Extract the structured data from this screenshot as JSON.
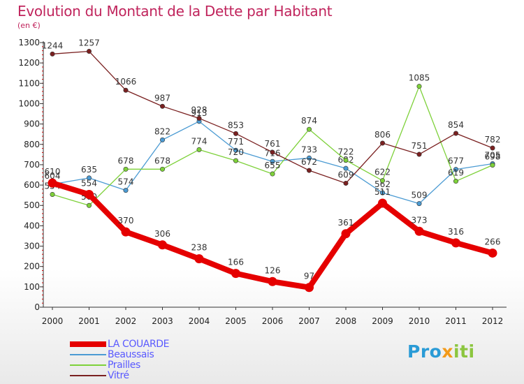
{
  "title": "Evolution du Montant de la Dette par Habitant",
  "subtitle": "(en €)",
  "logo": {
    "part1": "Pro",
    "part2": "x",
    "part3": "iti"
  },
  "colors": {
    "title": "#c0245c",
    "legend_text": "#5a5aff"
  },
  "chart_data": {
    "type": "line",
    "title": "Evolution du Montant de la Dette par Habitant",
    "subtitle": "(en €)",
    "x": [
      "2000",
      "2001",
      "2002",
      "2003",
      "2004",
      "2005",
      "2006",
      "2007",
      "2008",
      "2009",
      "2010",
      "2011",
      "2012"
    ],
    "ylim": [
      0,
      1300
    ],
    "yticks": [
      0,
      100,
      200,
      300,
      400,
      500,
      600,
      700,
      800,
      900,
      1000,
      1100,
      1200,
      1300
    ],
    "legend_position": "bottom-left",
    "grid": false,
    "series": [
      {
        "name": "LA COUARDE",
        "color": "#e50000",
        "width": 8,
        "values": [
          610,
          554,
          370,
          306,
          238,
          166,
          126,
          97,
          361,
          511,
          373,
          316,
          266
        ],
        "labels": [
          "610",
          "554",
          "370",
          "306",
          "238",
          "166",
          "126",
          "97",
          "361",
          "511",
          "373",
          "316",
          "266"
        ]
      },
      {
        "name": "Beaussais",
        "color": "#4b9bd3",
        "width": 1.3,
        "values": [
          604,
          635,
          574,
          822,
          913,
          771,
          716,
          733,
          682,
          562,
          509,
          677,
          705
        ],
        "labels": [
          "604",
          "635",
          "574",
          "822",
          "913",
          "771",
          "716",
          "733",
          "682",
          "562",
          "509",
          "677",
          "705"
        ]
      },
      {
        "name": "Prailles",
        "color": "#7ed13a",
        "width": 1.3,
        "values": [
          554,
          500,
          678,
          678,
          774,
          720,
          655,
          874,
          722,
          622,
          1085,
          619,
          698
        ],
        "labels": [
          "554",
          "500",
          "678",
          "678",
          "774",
          "720",
          "655",
          "874",
          "722",
          "622",
          "1085",
          "619",
          "698"
        ]
      },
      {
        "name": "Vitré",
        "color": "#7a2020",
        "width": 1.3,
        "values": [
          1244,
          1257,
          1066,
          987,
          928,
          853,
          761,
          672,
          609,
          806,
          751,
          854,
          782
        ],
        "labels": [
          "1244",
          "1257",
          "1066",
          "987",
          "928",
          "853",
          "761",
          "672",
          "609",
          "806",
          "751",
          "854",
          "782"
        ]
      }
    ]
  }
}
